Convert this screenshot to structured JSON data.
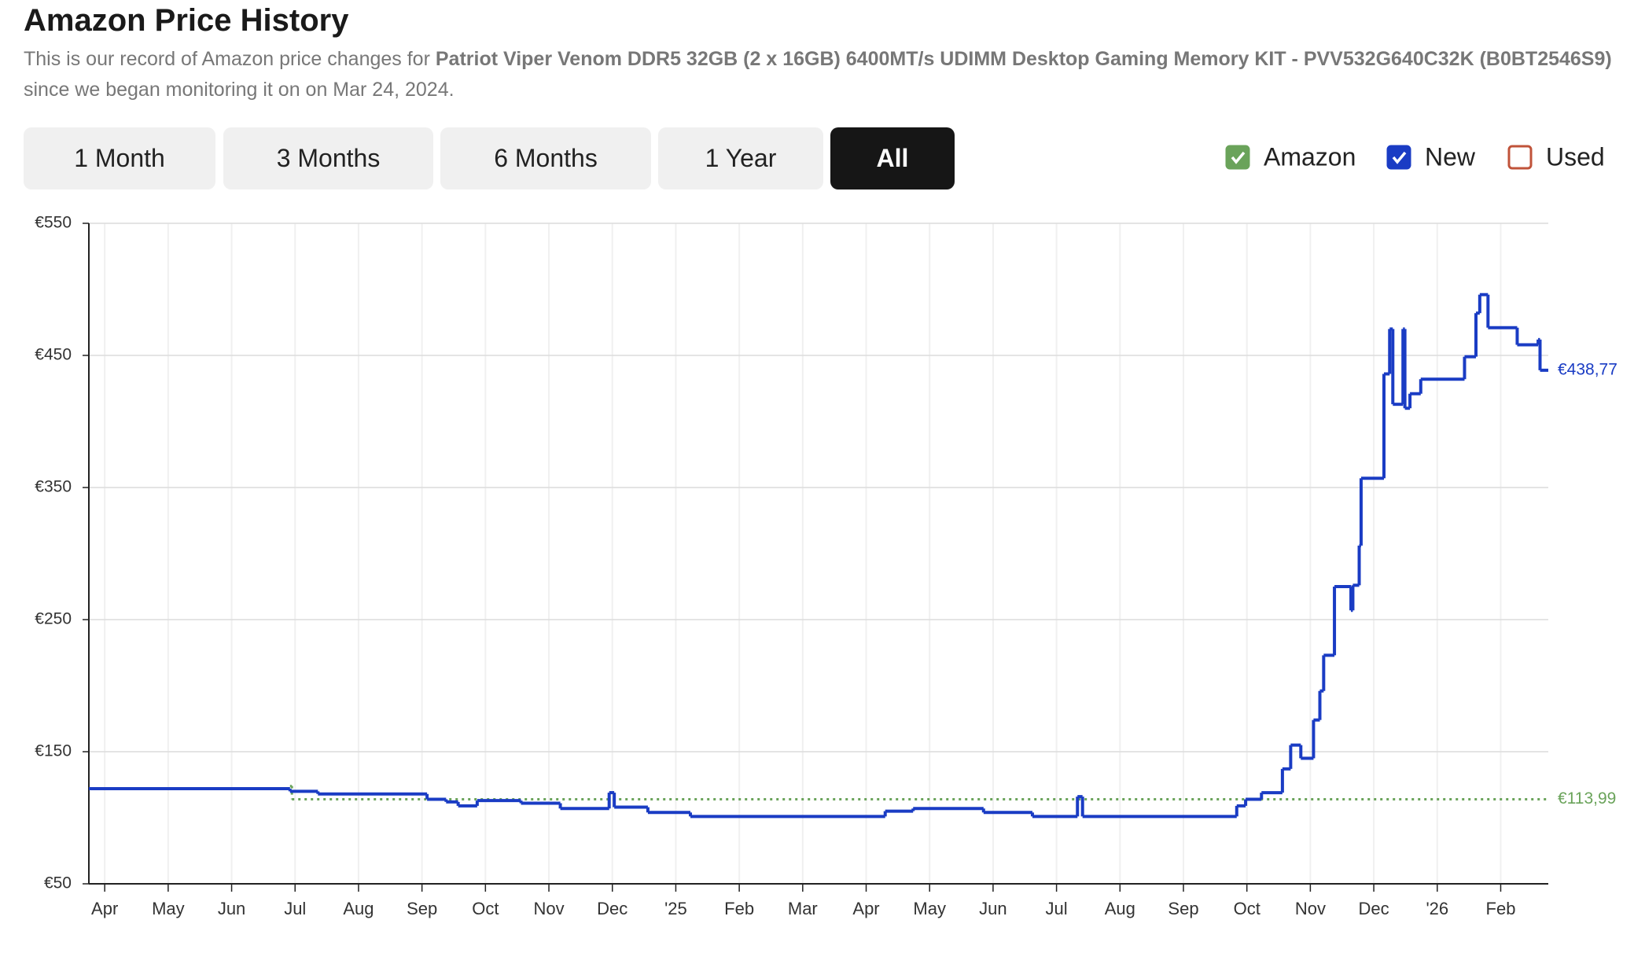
{
  "header": {
    "title": "Amazon Price History",
    "description": [
      "This is our record of Amazon price changes for ",
      "Patriot Viper Venom DDR5 32GB (2 x 16GB) 6400MT/s UDIMM Desktop Gaming Memory KIT - PVV532G640C32K (B0BT2546S9)",
      " since we began monitoring it on on Mar 24, 2024."
    ]
  },
  "controls": {
    "ranges": [
      "1 Month",
      "3 Months",
      "6 Months",
      "1 Year",
      "All"
    ],
    "active": 4
  },
  "chart_data": {
    "type": "line",
    "xlim": [
      -0.25,
      22.75
    ],
    "xticks": [
      {
        "value": 0,
        "label": "Apr"
      },
      {
        "value": 1,
        "label": "May"
      },
      {
        "value": 2,
        "label": "Jun"
      },
      {
        "value": 3,
        "label": "Jul"
      },
      {
        "value": 4,
        "label": "Aug"
      },
      {
        "value": 5,
        "label": "Sep"
      },
      {
        "value": 6,
        "label": "Oct"
      },
      {
        "value": 7,
        "label": "Nov"
      },
      {
        "value": 8,
        "label": "Dec"
      },
      {
        "value": 9,
        "label": "'25"
      },
      {
        "value": 10,
        "label": "Feb"
      },
      {
        "value": 11,
        "label": "Mar"
      },
      {
        "value": 12,
        "label": "Apr"
      },
      {
        "value": 13,
        "label": "May"
      },
      {
        "value": 14,
        "label": "Jun"
      },
      {
        "value": 15,
        "label": "Jul"
      },
      {
        "value": 16,
        "label": "Aug"
      },
      {
        "value": 17,
        "label": "Sep"
      },
      {
        "value": 18,
        "label": "Oct"
      },
      {
        "value": 19,
        "label": "Nov"
      },
      {
        "value": 20,
        "label": "Dec"
      },
      {
        "value": 21,
        "label": "'26"
      },
      {
        "value": 22,
        "label": "Feb"
      }
    ],
    "ylim": [
      50,
      550
    ],
    "yticks": [
      {
        "value": 50,
        "label": "€50"
      },
      {
        "value": 150,
        "label": "€150"
      },
      {
        "value": 250,
        "label": "€250"
      },
      {
        "value": 350,
        "label": "€350"
      },
      {
        "value": 450,
        "label": "€450"
      },
      {
        "value": 550,
        "label": "€550"
      }
    ],
    "grid": true,
    "series": [
      {
        "name": "Amazon",
        "color": "#6aa35a",
        "checked": true,
        "style": "dotted",
        "x": [
          2.92,
          2.95
        ],
        "values": [
          124,
          113.99
        ],
        "last_label": "€113,99"
      },
      {
        "name": "New",
        "color": "#1a3cc4",
        "checked": true,
        "style": "solid",
        "x": [
          -0.25,
          2.92,
          3.36,
          5.08,
          5.38,
          5.57,
          5.87,
          6.56,
          7.18,
          7.95,
          8.03,
          8.56,
          9.23,
          12.3,
          12.74,
          13.85,
          14.62,
          15.33,
          15.41,
          17.84,
          17.98,
          18.23,
          18.56,
          18.69,
          18.85,
          19.05,
          19.15,
          19.21,
          19.38,
          19.64,
          19.67,
          19.77,
          19.8,
          20.16,
          20.25,
          20.3,
          20.46,
          20.49,
          20.57,
          20.74,
          21.43,
          21.61,
          21.67,
          21.8,
          22.26,
          22.59,
          22.62
        ],
        "values": [
          122,
          120,
          118,
          114,
          112,
          109,
          113,
          111,
          107,
          119,
          108,
          104,
          101,
          105,
          107,
          104,
          101,
          116,
          101,
          109,
          114,
          119,
          137,
          155,
          145,
          174,
          196,
          223,
          275,
          257,
          276,
          306,
          357,
          436,
          470,
          413,
          470,
          410,
          421,
          432,
          449,
          482,
          496,
          471,
          458,
          462,
          438.77
        ],
        "last_label": "€438,77"
      },
      {
        "name": "Used",
        "color": "#c0533a",
        "checked": false,
        "style": "solid",
        "x": [],
        "values": []
      }
    ]
  }
}
